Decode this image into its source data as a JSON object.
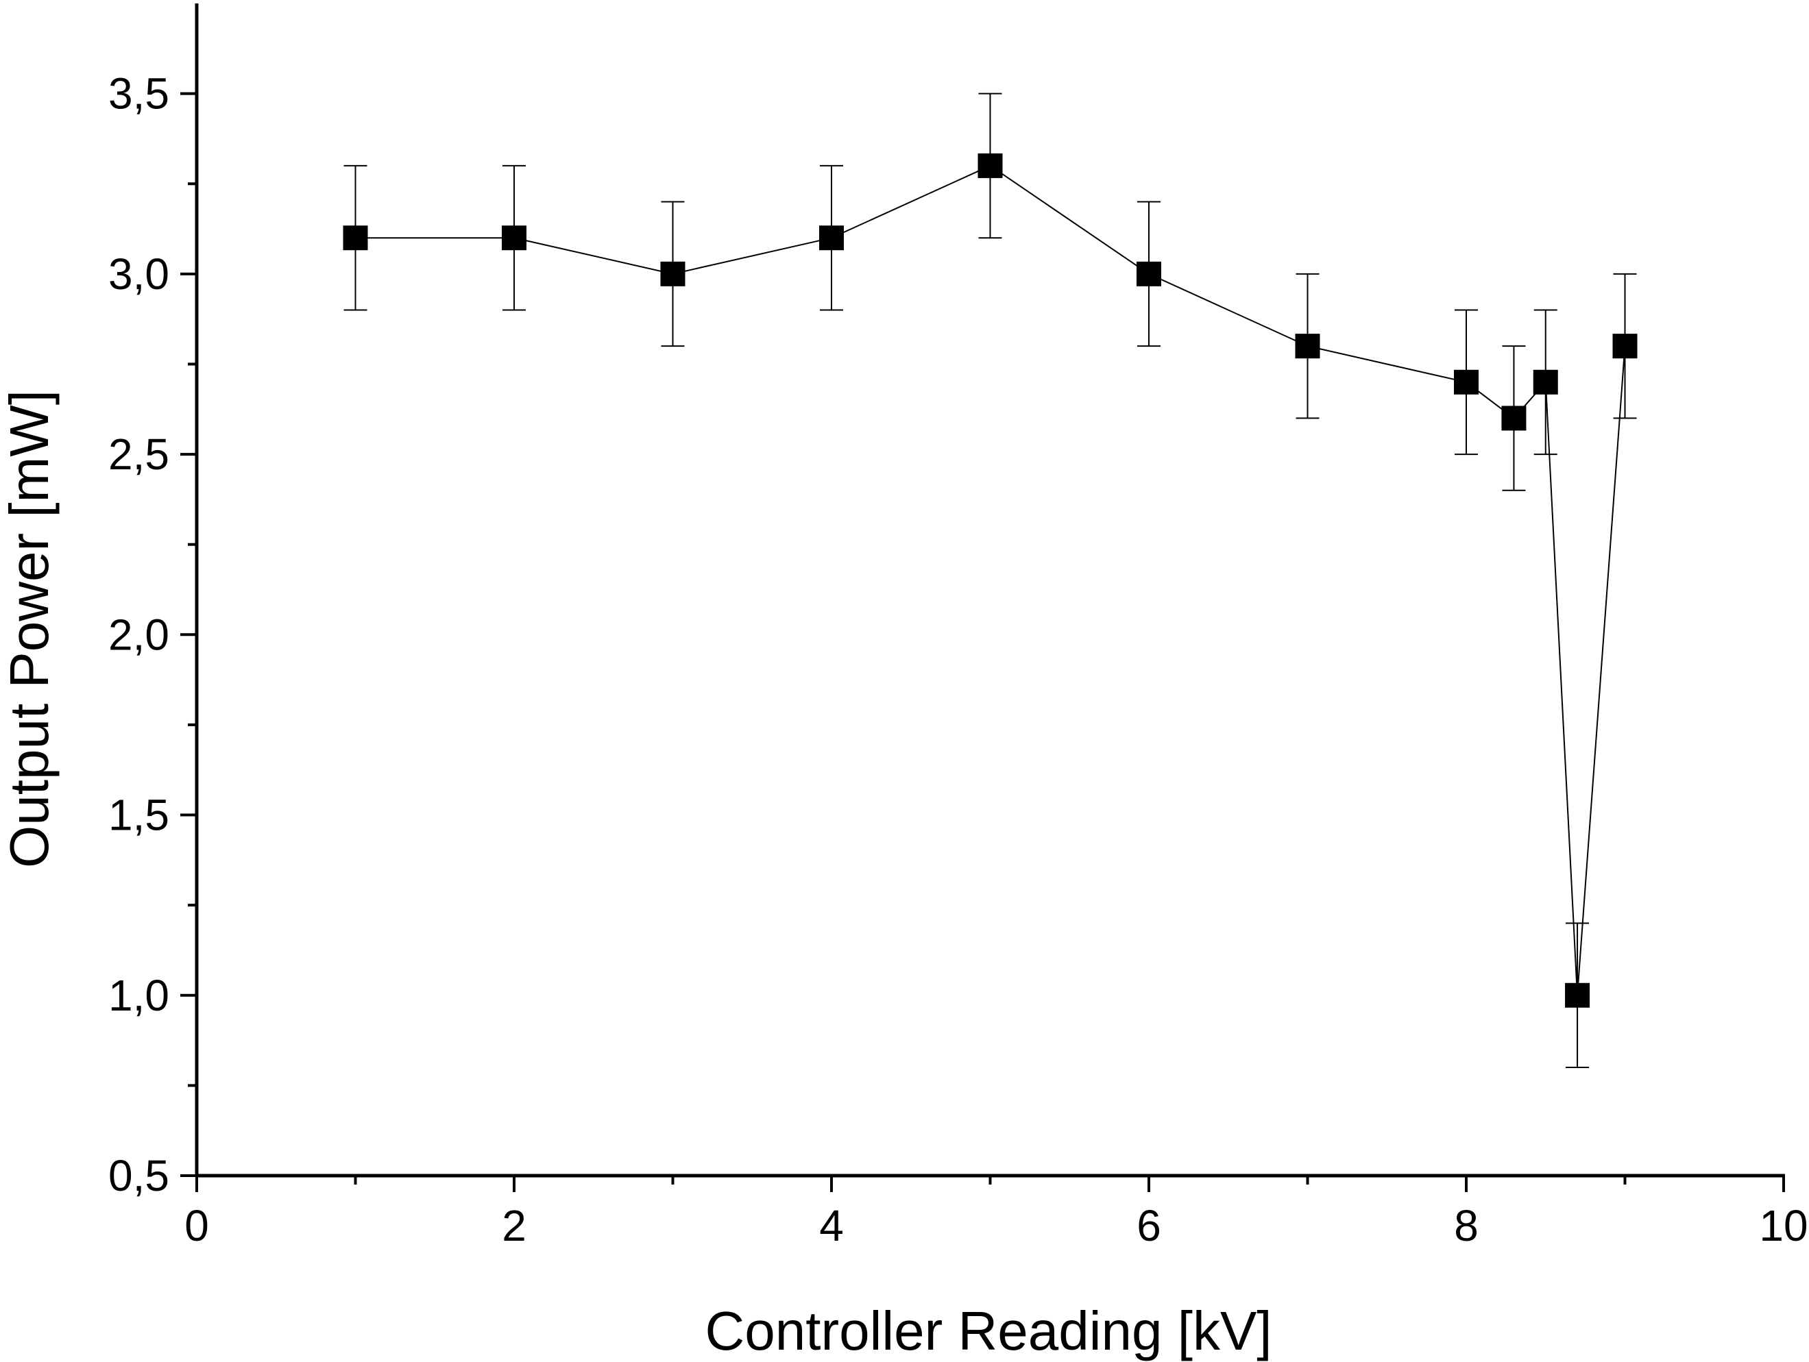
{
  "chart_data": {
    "type": "scatter",
    "title": "",
    "xlabel": "Controller Reading [kV]",
    "ylabel": "Output Power [mW]",
    "xlim": [
      0,
      10
    ],
    "ylim": [
      0.5,
      3.75
    ],
    "x_ticks": [
      0,
      2,
      4,
      6,
      8,
      10
    ],
    "x_tick_labels": [
      "0",
      "2",
      "4",
      "6",
      "8",
      "10"
    ],
    "y_ticks": [
      0.5,
      1.0,
      1.5,
      2.0,
      2.5,
      3.0,
      3.5
    ],
    "y_tick_labels": [
      "0,5",
      "1,0",
      "1,5",
      "2,0",
      "2,5",
      "3,0",
      "3,5"
    ],
    "grid": false,
    "legend": "none",
    "marker": "square",
    "connected": true,
    "color": "#000000",
    "series": [
      {
        "x": [
          1,
          2,
          3,
          4,
          5,
          6,
          7,
          8,
          8.3,
          8.5,
          8.7,
          9
        ],
        "y": [
          3.1,
          3.1,
          3.0,
          3.1,
          3.3,
          3.0,
          2.8,
          2.7,
          2.6,
          2.7,
          1.0,
          2.8
        ],
        "yerr": [
          0.2,
          0.2,
          0.2,
          0.2,
          0.2,
          0.2,
          0.2,
          0.2,
          0.2,
          0.2,
          0.2,
          0.2
        ]
      }
    ]
  }
}
